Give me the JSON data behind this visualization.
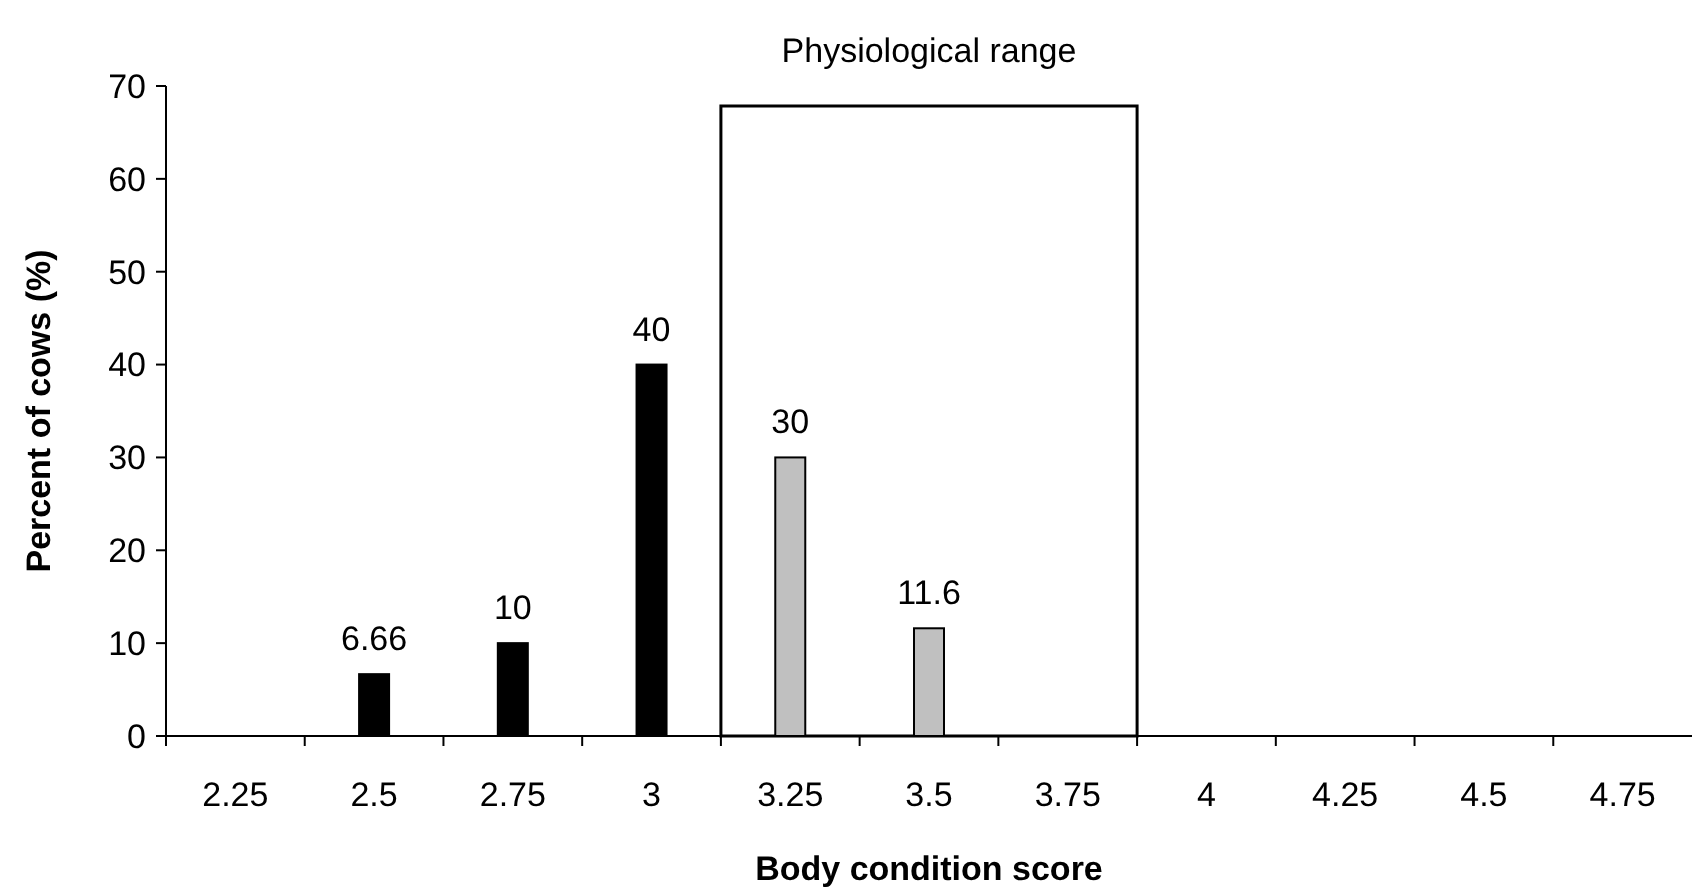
{
  "chart_data": {
    "type": "bar",
    "xlabel": "Body condition score",
    "ylabel": "Percent of cows (%)",
    "categories": [
      "2.25",
      "2.5",
      "2.75",
      "3",
      "3.25",
      "3.5",
      "3.75",
      "4",
      "4.25",
      "4.5",
      "4.75"
    ],
    "values": [
      null,
      6.66,
      10,
      40,
      30,
      11.6,
      null,
      null,
      null,
      null,
      null
    ],
    "colors": [
      null,
      "#000000",
      "#000000",
      "#000000",
      "#c0c0c0",
      "#c0c0c0",
      null,
      null,
      null,
      null,
      null
    ],
    "data_labels": true,
    "ylim": [
      0,
      70
    ],
    "yticks": [
      0,
      10,
      20,
      30,
      40,
      50,
      60,
      70
    ],
    "annotations": [
      "Physiological range"
    ]
  }
}
